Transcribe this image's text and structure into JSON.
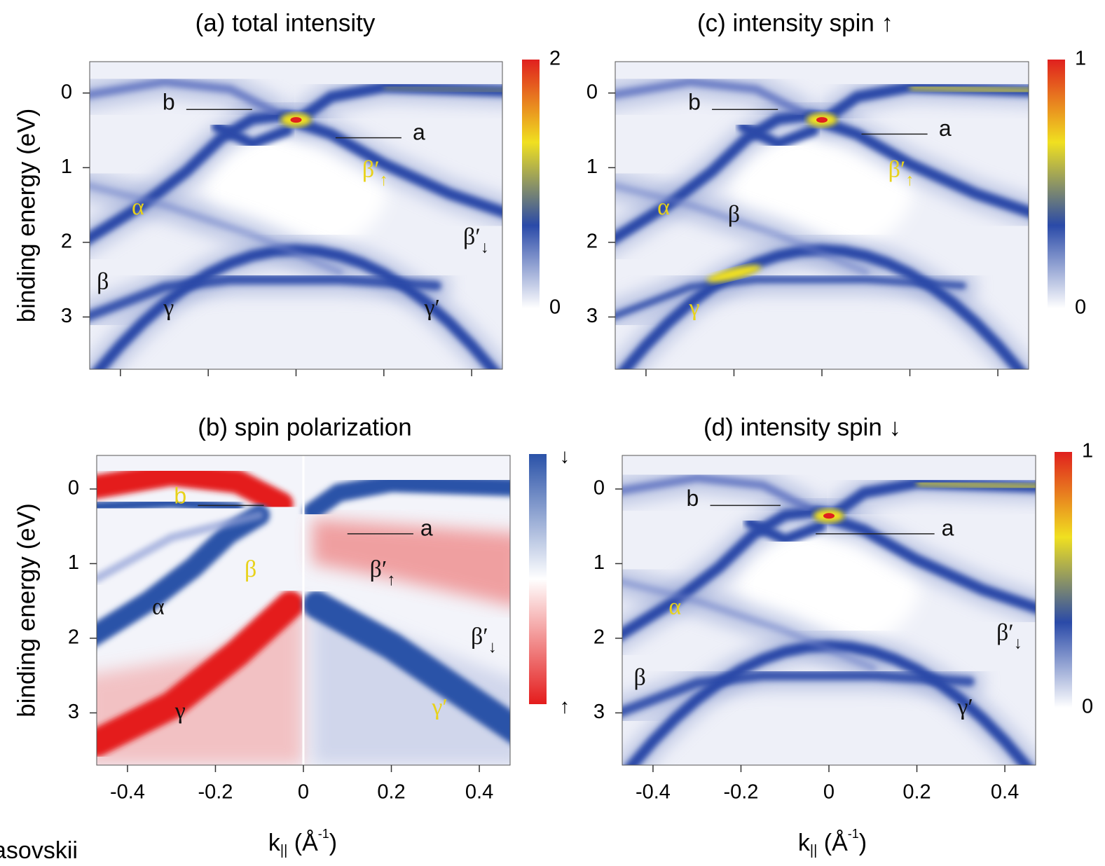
{
  "chart_data": [
    {
      "type": "heatmap",
      "title": "(a) total intensity",
      "y_label": "binding energy (eV)",
      "xlim": [
        -0.47,
        0.47
      ],
      "ylim": [
        3.7,
        -0.42
      ],
      "xticks": [
        -0.4,
        -0.2,
        0,
        0.2,
        0.4
      ],
      "x_tick_labels": false,
      "yticks": [
        0,
        1,
        2,
        3
      ],
      "colorbar": {
        "colors": [
          "#ffffff",
          "#2a4aa8",
          "#f0e020",
          "#e0201e"
        ],
        "ticks": [
          0,
          2
        ]
      },
      "annotations": [
        {
          "text": "b"
        },
        {
          "text": "a"
        },
        {
          "text": "α",
          "color": "#e8d21a"
        },
        {
          "text": "β′",
          "sub": "↑",
          "color": "#e8d21a"
        },
        {
          "text": "β′",
          "sub": "↓"
        },
        {
          "text": "β"
        },
        {
          "text": "γ"
        },
        {
          "text": "γ′"
        }
      ]
    },
    {
      "type": "heatmap",
      "title": "(b) spin polarization",
      "y_label": "binding energy (eV)",
      "xlim": [
        -0.47,
        0.47
      ],
      "ylim": [
        3.7,
        -0.45
      ],
      "xticks": [
        -0.4,
        -0.2,
        0,
        0.2,
        0.4
      ],
      "x_tick_labels": true,
      "yticks": [
        0,
        1,
        2,
        3
      ],
      "x_label": [
        "k",
        "||",
        " (Å",
        "-1",
        ")"
      ],
      "colorbar": {
        "colors": [
          "#e41c1c",
          "#ffffff",
          "#2a52a8"
        ],
        "labels": [
          "↑",
          "↓"
        ]
      },
      "annotations": [
        {
          "text": "b",
          "color": "#e8d21a"
        },
        {
          "text": "a"
        },
        {
          "text": "β",
          "color": "#e8d21a"
        },
        {
          "text": "β′",
          "sub": "↑"
        },
        {
          "text": "α"
        },
        {
          "text": "β′",
          "sub": "↓"
        },
        {
          "text": "γ"
        },
        {
          "text": "γ′",
          "color": "#e8d21a"
        }
      ]
    },
    {
      "type": "heatmap",
      "title": "(c) intensity spin ↑",
      "xlim": [
        -0.47,
        0.47
      ],
      "ylim": [
        3.7,
        -0.42
      ],
      "xticks": [
        -0.4,
        -0.2,
        0,
        0.2,
        0.4
      ],
      "x_tick_labels": false,
      "yticks": [
        0,
        1,
        2,
        3
      ],
      "colorbar": {
        "colors": [
          "#ffffff",
          "#2a4aa8",
          "#f0e020",
          "#e0201e"
        ],
        "ticks": [
          0,
          1
        ]
      },
      "annotations": [
        {
          "text": "b"
        },
        {
          "text": "a"
        },
        {
          "text": "α",
          "color": "#e8d21a"
        },
        {
          "text": "β′",
          "sub": "↑",
          "color": "#e8d21a"
        },
        {
          "text": "β"
        },
        {
          "text": "γ",
          "color": "#e8d21a"
        }
      ]
    },
    {
      "type": "heatmap",
      "title": "(d) intensity spin ↓",
      "xlim": [
        -0.47,
        0.47
      ],
      "ylim": [
        3.7,
        -0.45
      ],
      "xticks": [
        -0.4,
        -0.2,
        0,
        0.2,
        0.4
      ],
      "x_tick_labels": true,
      "yticks": [
        0,
        1,
        2,
        3
      ],
      "x_label": [
        "k",
        "||",
        " (Å",
        "-1",
        ")"
      ],
      "colorbar": {
        "colors": [
          "#ffffff",
          "#2a4aa8",
          "#f0e020",
          "#e0201e"
        ],
        "ticks": [
          0,
          1
        ]
      },
      "annotations": [
        {
          "text": "b"
        },
        {
          "text": "a"
        },
        {
          "text": "α",
          "color": "#e8d21a"
        },
        {
          "text": "β′",
          "sub": "↓"
        },
        {
          "text": "β"
        },
        {
          "text": "γ′"
        }
      ]
    }
  ],
  "footer": "asovskii"
}
